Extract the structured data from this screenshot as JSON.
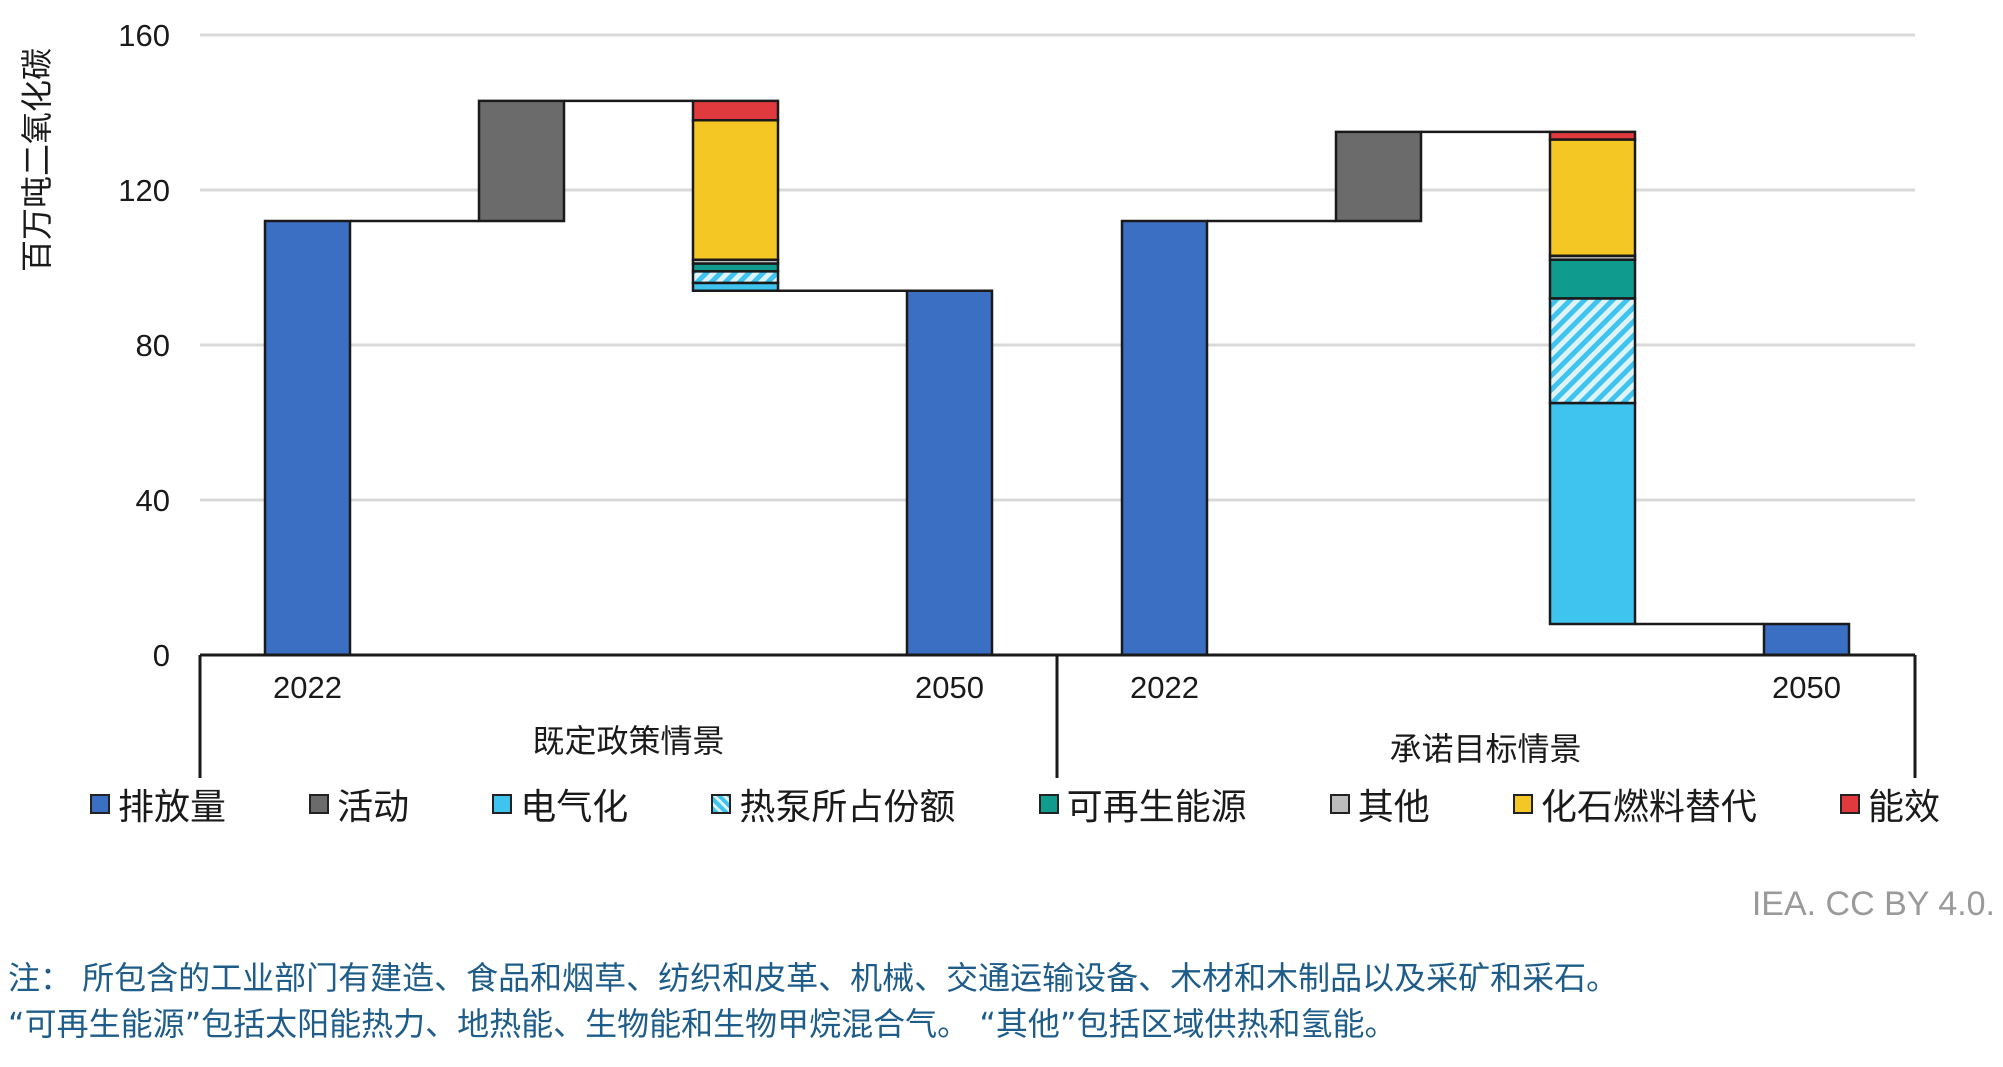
{
  "chart_data": {
    "type": "waterfall-bar",
    "ylabel": "百万吨二氧化碳",
    "ylim": [
      0,
      160
    ],
    "yticks": [
      0,
      40,
      80,
      120,
      160
    ],
    "grid": true,
    "legend_position": "bottom",
    "series": [
      {
        "name": "排放量",
        "color": "#3a6fc4"
      },
      {
        "name": "活动",
        "color": "#6b6b6b"
      },
      {
        "name": "电气化",
        "color": "#3fc4ef"
      },
      {
        "name": "热泵所占份额",
        "color": "#3fc4ef",
        "pattern": "hatched"
      },
      {
        "name": "可再生能源",
        "color": "#0f9b8e"
      },
      {
        "name": "其他",
        "color": "#bdbdbd"
      },
      {
        "name": "化石燃料替代",
        "color": "#f5c724"
      },
      {
        "name": "能效",
        "color": "#e0393e"
      }
    ],
    "groups": [
      {
        "label": "既定政策情景",
        "bars": [
          {
            "x": "2022",
            "kind": "total",
            "value": 112
          },
          {
            "x": "",
            "kind": "step",
            "from": 112,
            "to": 143,
            "segments": [
              {
                "series": "活动",
                "value": 31
              }
            ]
          },
          {
            "x": "",
            "kind": "step",
            "from": 143,
            "to": 94,
            "segments": [
              {
                "series": "能效",
                "value": 5
              },
              {
                "series": "化石燃料替代",
                "value": 36
              },
              {
                "series": "其他",
                "value": 1
              },
              {
                "series": "可再生能源",
                "value": 2
              },
              {
                "series": "热泵所占份额",
                "value": 3
              },
              {
                "series": "电气化",
                "value": 2
              }
            ]
          },
          {
            "x": "2050",
            "kind": "total",
            "value": 94
          }
        ]
      },
      {
        "label": "承诺目标情景",
        "bars": [
          {
            "x": "2022",
            "kind": "total",
            "value": 112
          },
          {
            "x": "",
            "kind": "step",
            "from": 112,
            "to": 135,
            "segments": [
              {
                "series": "活动",
                "value": 23
              }
            ]
          },
          {
            "x": "",
            "kind": "step",
            "from": 135,
            "to": 8,
            "segments": [
              {
                "series": "能效",
                "value": 2
              },
              {
                "series": "化石燃料替代",
                "value": 30
              },
              {
                "series": "其他",
                "value": 1
              },
              {
                "series": "可再生能源",
                "value": 10
              },
              {
                "series": "热泵所占份额",
                "value": 27
              },
              {
                "series": "电气化",
                "value": 57
              }
            ]
          },
          {
            "x": "2050",
            "kind": "total",
            "value": 8
          }
        ]
      }
    ]
  },
  "source": "IEA. CC BY 4.0.",
  "notes": [
    "注： 所包含的工业部门有建造、食品和烟草、纺织和皮革、机械、交通运输设备、木材和木制品以及采矿和采石。",
    "“可再生能源”包括太阳能热力、地热能、生物能和生物甲烷混合气。 “其他”包括区域供热和氢能。"
  ]
}
